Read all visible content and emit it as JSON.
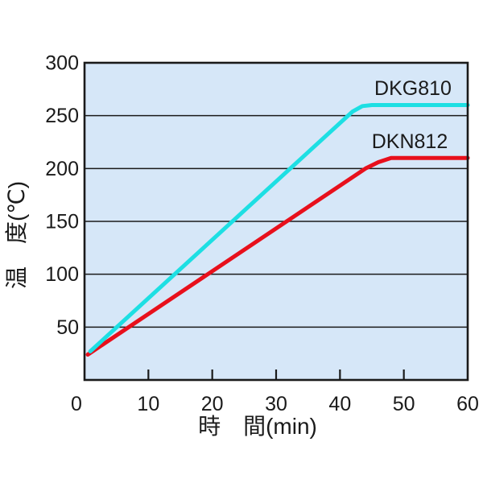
{
  "figure": {
    "background": "#ffffff",
    "plot_background": "#d6e7f8",
    "grid_color": "#1a1a1a",
    "axis_color": "#1a1a1a",
    "text_color": "#1a1a1a"
  },
  "chart_data": {
    "type": "line",
    "title": "",
    "xlabel": "時　間(min)",
    "ylabel": "温　度(℃)",
    "xlim": [
      0,
      60
    ],
    "ylim": [
      0,
      300
    ],
    "x_ticks": [
      0,
      10,
      20,
      30,
      40,
      50,
      60
    ],
    "y_ticks": [
      50,
      100,
      150,
      200,
      250,
      300
    ],
    "grid": "horizontal gridlines every 50°C on light blue plot area",
    "legend_position": "inline labels near each line, upper right",
    "series": [
      {
        "name": "DKN812",
        "color": "#e8101c",
        "description": "heats ~4°C/min from ~24°C, reaches 210°C at ~48 min, then holds at 210°C",
        "points": [
          [
            0.5,
            24
          ],
          [
            44,
            200
          ],
          [
            46,
            206
          ],
          [
            48,
            210
          ],
          [
            60,
            210
          ]
        ]
      },
      {
        "name": "DKG810",
        "color": "#1ddfe3",
        "description": "heats ~5.5°C/min from ~27°C, reaches 260°C at ~44 min, then holds at 260°C",
        "points": [
          [
            0.9,
            27
          ],
          [
            40,
            243
          ],
          [
            42,
            254
          ],
          [
            43.5,
            259
          ],
          [
            45,
            260
          ],
          [
            60,
            260
          ]
        ]
      }
    ]
  }
}
